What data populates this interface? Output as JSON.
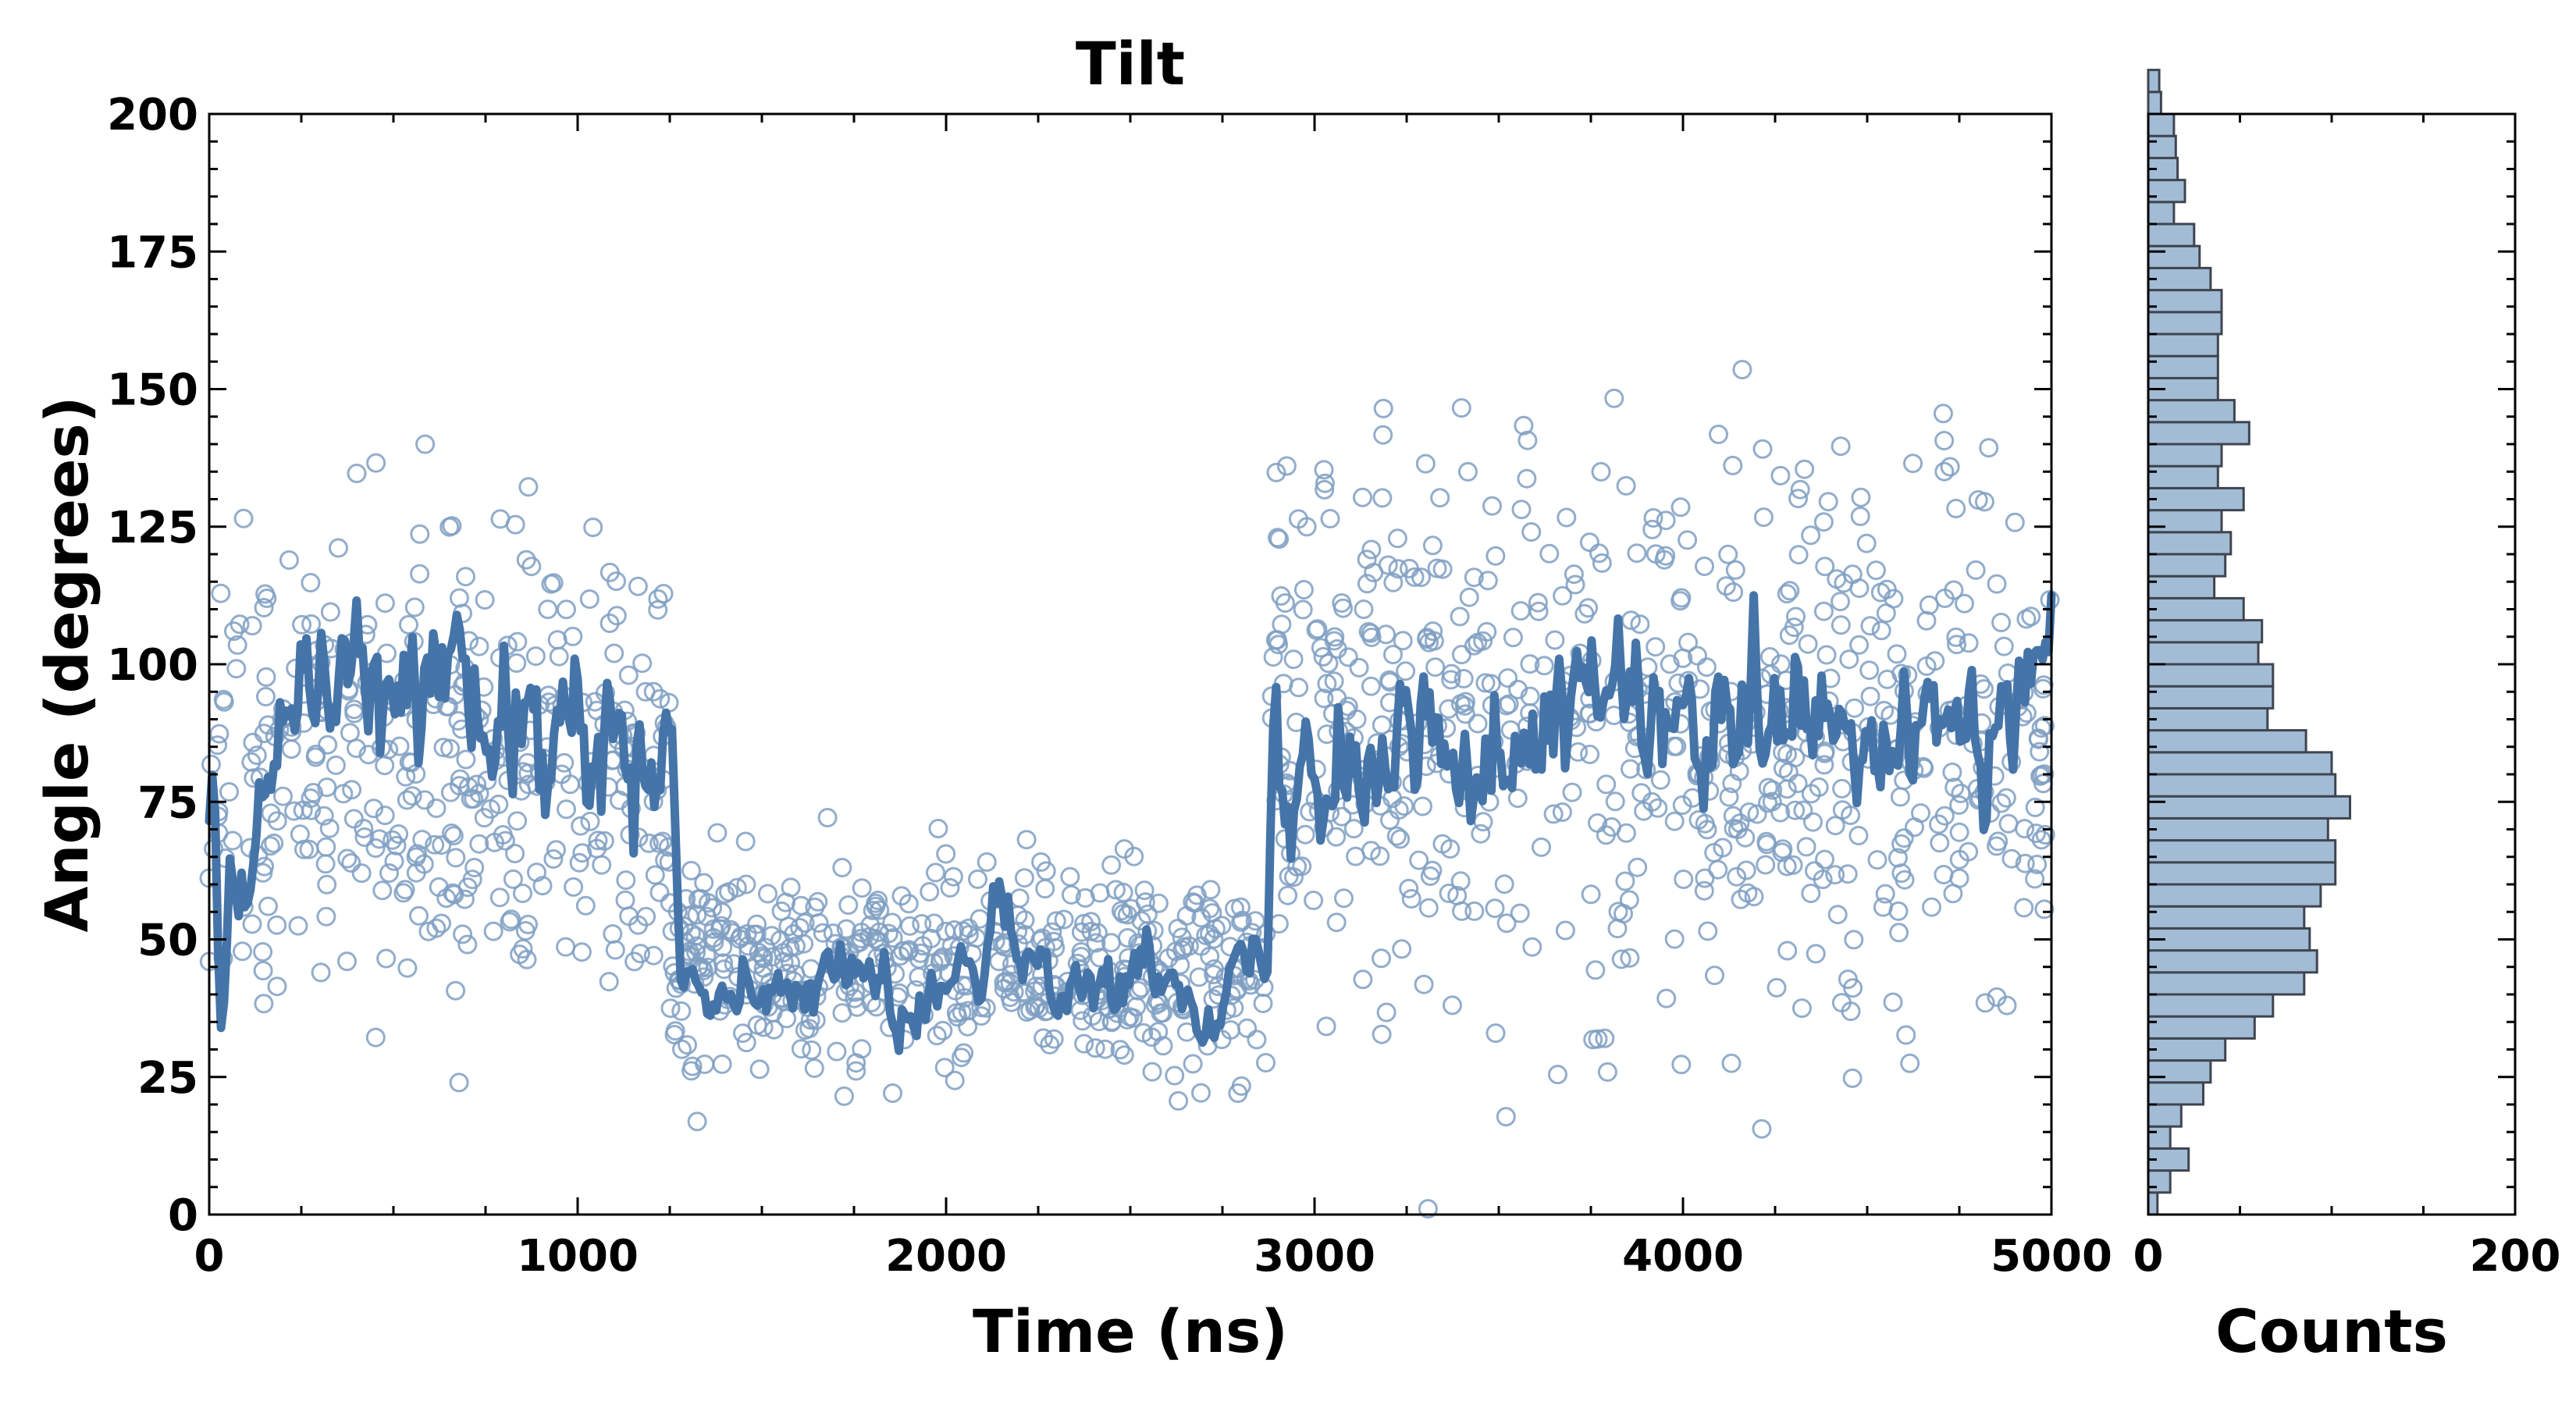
{
  "colors": {
    "scatter": "#7f9fc2",
    "line": "#4574a8",
    "bar_fill": "#a3bcd6",
    "bar_edge": "#3f4550"
  },
  "chart_data": [
    {
      "type": "scatter",
      "title": "Tilt",
      "xlabel": "Time (ns)",
      "ylabel": "Angle (degrees)",
      "xlim": [
        0,
        5000
      ],
      "ylim": [
        0,
        200
      ],
      "x_ticks": [
        "0",
        "1000",
        "2000",
        "3000",
        "4000",
        "5000"
      ],
      "y_ticks": [
        "0",
        "25",
        "50",
        "75",
        "100",
        "125",
        "150",
        "175",
        "200"
      ],
      "grid": false,
      "segments": [
        {
          "x0": 0,
          "x1": 1250,
          "mean": 82,
          "scatter_sd": 36
        },
        {
          "x0": 1250,
          "x1": 2880,
          "mean": 45,
          "scatter_sd": 16
        },
        {
          "x0": 2880,
          "x1": 5000,
          "mean": 87,
          "scatter_sd": 40
        }
      ],
      "line_anchors": [
        [
          0,
          78
        ],
        [
          25,
          45
        ],
        [
          70,
          45
        ],
        [
          120,
          62
        ],
        [
          160,
          85
        ],
        [
          220,
          95
        ],
        [
          300,
          100
        ],
        [
          400,
          95
        ],
        [
          500,
          90
        ],
        [
          600,
          100
        ],
        [
          700,
          95
        ],
        [
          800,
          85
        ],
        [
          900,
          90
        ],
        [
          1000,
          85
        ],
        [
          1100,
          85
        ],
        [
          1200,
          90
        ],
        [
          1250,
          92
        ],
        [
          1280,
          45
        ],
        [
          1400,
          42
        ],
        [
          1600,
          42
        ],
        [
          1800,
          44
        ],
        [
          1900,
          35
        ],
        [
          2000,
          40
        ],
        [
          2100,
          44
        ],
        [
          2150,
          56
        ],
        [
          2200,
          48
        ],
        [
          2300,
          45
        ],
        [
          2400,
          42
        ],
        [
          2500,
          42
        ],
        [
          2600,
          45
        ],
        [
          2700,
          38
        ],
        [
          2800,
          45
        ],
        [
          2870,
          45
        ],
        [
          2890,
          85
        ],
        [
          3000,
          88
        ],
        [
          3200,
          82
        ],
        [
          3400,
          88
        ],
        [
          3600,
          85
        ],
        [
          3750,
          95
        ],
        [
          3900,
          88
        ],
        [
          4100,
          85
        ],
        [
          4300,
          88
        ],
        [
          4500,
          82
        ],
        [
          4700,
          87
        ],
        [
          4900,
          90
        ],
        [
          5000,
          105
        ]
      ]
    },
    {
      "type": "histogram",
      "orientation": "horizontal",
      "xlabel": "Counts",
      "xlim": [
        0,
        200
      ],
      "ylim": [
        0,
        200
      ],
      "x_ticks": [
        "0",
        "200"
      ],
      "bin_width": 4,
      "bins_start": 0,
      "counts": [
        5,
        12,
        22,
        12,
        18,
        30,
        34,
        42,
        58,
        68,
        85,
        92,
        88,
        85,
        94,
        102,
        102,
        98,
        110,
        102,
        100,
        86,
        65,
        68,
        68,
        60,
        62,
        52,
        36,
        42,
        45,
        40,
        52,
        38,
        40,
        55,
        47,
        38,
        38,
        38,
        40,
        40,
        34,
        28,
        25,
        14,
        20,
        16,
        15,
        14,
        7,
        6
      ]
    }
  ]
}
